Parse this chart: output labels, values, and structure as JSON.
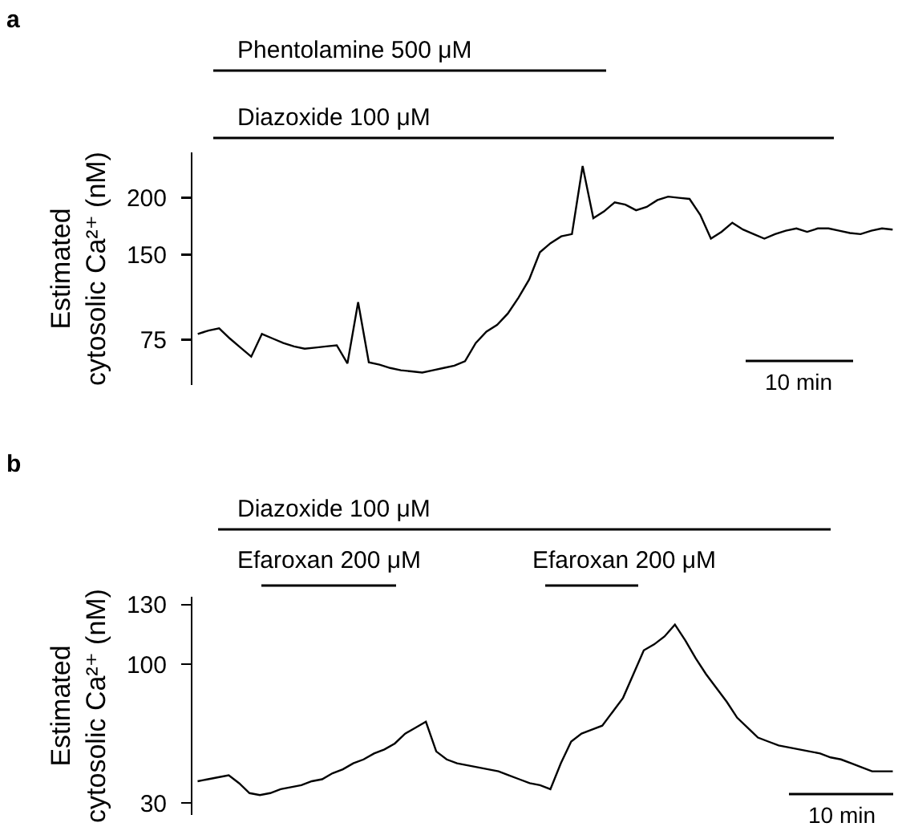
{
  "chart_data": [
    {
      "type": "line",
      "annotations": [
        "a",
        "Phentolamine 500 μM",
        "Diazoxide 100 μM",
        "10 min"
      ],
      "ylabel": "Estimated\ncytosolic Ca²⁺ (nM)",
      "tick_labels": "y",
      "ylim": [
        35,
        240
      ],
      "yticks": [
        75,
        150,
        200
      ],
      "categories": [
        null,
        null,
        null,
        null,
        null,
        null,
        null,
        null,
        null,
        null,
        null,
        null,
        null,
        null,
        null,
        null,
        null,
        null,
        null,
        null,
        null,
        null,
        null,
        null,
        null,
        null,
        null,
        null,
        null,
        null,
        null,
        null,
        null,
        null,
        null,
        null,
        null,
        null,
        null,
        null,
        null,
        null,
        null,
        null,
        null,
        null,
        null,
        null,
        null,
        null,
        null,
        null,
        null,
        null,
        null,
        null,
        null,
        null,
        null,
        null,
        null,
        null,
        null,
        null,
        null,
        null
      ],
      "series": [
        {
          "color": "#000000",
          "values": [
            80,
            83,
            85,
            76,
            68,
            60,
            80,
            76,
            72,
            69,
            67,
            68,
            69,
            70,
            54,
            108,
            55,
            53,
            50,
            48,
            47,
            46,
            48,
            50,
            52,
            56,
            72,
            82,
            88,
            98,
            112,
            128,
            152,
            160,
            166,
            168,
            228,
            182,
            188,
            196,
            194,
            189,
            192,
            198,
            201,
            200,
            199,
            185,
            164,
            170,
            178,
            172,
            168,
            164,
            168,
            171,
            173,
            170,
            173,
            173,
            171,
            169,
            168,
            171,
            173,
            172
          ]
        }
      ]
    },
    {
      "type": "line",
      "annotations": [
        "b",
        "Diazoxide 100 μM",
        "Efaroxan 200 μM",
        "Efaroxan 200 μM",
        "10 min"
      ],
      "ylabel": "Estimated\ncytosolic Ca²⁺ (nM)",
      "tick_labels": "y",
      "ylim": [
        24,
        134
      ],
      "yticks": [
        30,
        100,
        130
      ],
      "categories": [
        null,
        null,
        null,
        null,
        null,
        null,
        null,
        null,
        null,
        null,
        null,
        null,
        null,
        null,
        null,
        null,
        null,
        null,
        null,
        null,
        null,
        null,
        null,
        null,
        null,
        null,
        null,
        null,
        null,
        null,
        null,
        null,
        null,
        null,
        null,
        null,
        null,
        null,
        null,
        null,
        null,
        null,
        null,
        null,
        null,
        null,
        null,
        null,
        null,
        null,
        null,
        null,
        null,
        null,
        null,
        null,
        null,
        null,
        null,
        null,
        null,
        null,
        null,
        null,
        null,
        null,
        null,
        null
      ],
      "series": [
        {
          "color": "#000000",
          "values": [
            41,
            42,
            43,
            44,
            40,
            35,
            34,
            35,
            37,
            38,
            39,
            41,
            42,
            45,
            47,
            50,
            52,
            55,
            57,
            60,
            65,
            68,
            71,
            56,
            52,
            50,
            49,
            48,
            47,
            46,
            44,
            42,
            40,
            39,
            37,
            50,
            61,
            65,
            67,
            69,
            76,
            83,
            95,
            107,
            110,
            114,
            120,
            112,
            103,
            95,
            88,
            81,
            73,
            68,
            63,
            61,
            59,
            58,
            57,
            56,
            55,
            53,
            52,
            50,
            48,
            46,
            46,
            46
          ]
        }
      ]
    }
  ]
}
